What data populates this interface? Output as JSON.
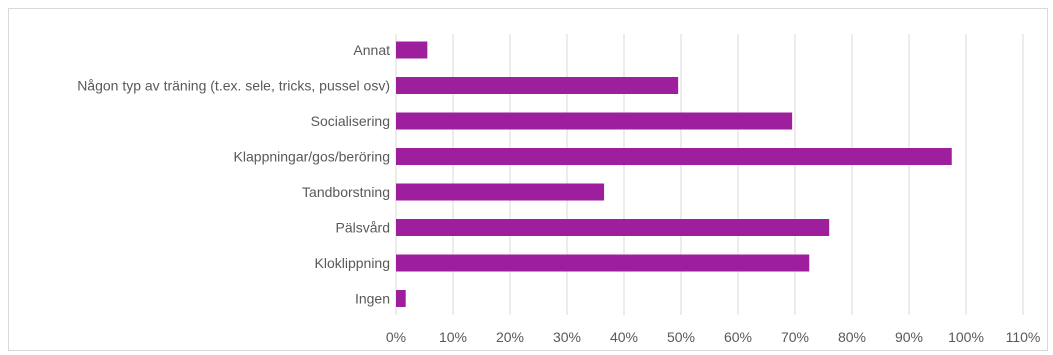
{
  "chart_data": {
    "type": "bar",
    "orientation": "horizontal",
    "categories": [
      "Annat",
      "Någon typ av träning (t.ex. sele, tricks, pussel osv)",
      "Socialisering",
      "Klappningar/gos/beröring",
      "Tandborstning",
      "Pälsvård",
      "Kloklippning",
      "Ingen"
    ],
    "values": [
      5.5,
      49.5,
      69.5,
      97.5,
      36.5,
      76,
      72.5,
      1.7
    ],
    "x_ticks": [
      "0%",
      "10%",
      "20%",
      "30%",
      "40%",
      "50%",
      "60%",
      "70%",
      "80%",
      "90%",
      "100%",
      "110%"
    ],
    "xlim": [
      0,
      110
    ],
    "bar_color": "#9e1f9e",
    "grid": true,
    "legend": "none"
  }
}
